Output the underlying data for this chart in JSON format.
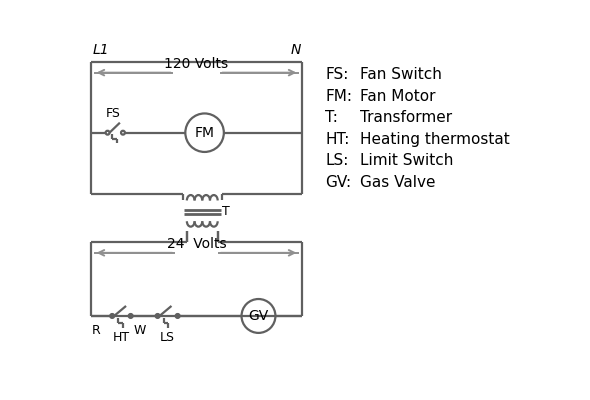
{
  "bg_color": "#ffffff",
  "line_color": "#606060",
  "arrow_color": "#909090",
  "text_color": "#000000",
  "legend": [
    [
      "FS:",
      "Fan Switch"
    ],
    [
      "FM:",
      "Fan Motor"
    ],
    [
      "T:",
      "  Transformer"
    ],
    [
      "HT:",
      "Heating thermostat"
    ],
    [
      "LS:",
      "Limit Switch"
    ],
    [
      "GV:",
      "  Gas Valve"
    ]
  ],
  "volts_120_label": "120 Volts",
  "volts_24_label": "24  Volts",
  "L1_label": "L1",
  "N_label": "N",
  "T_label": "T",
  "R_label": "R",
  "W_label": "W",
  "FS_label": "FS",
  "HT_label": "HT",
  "LS_label": "LS"
}
